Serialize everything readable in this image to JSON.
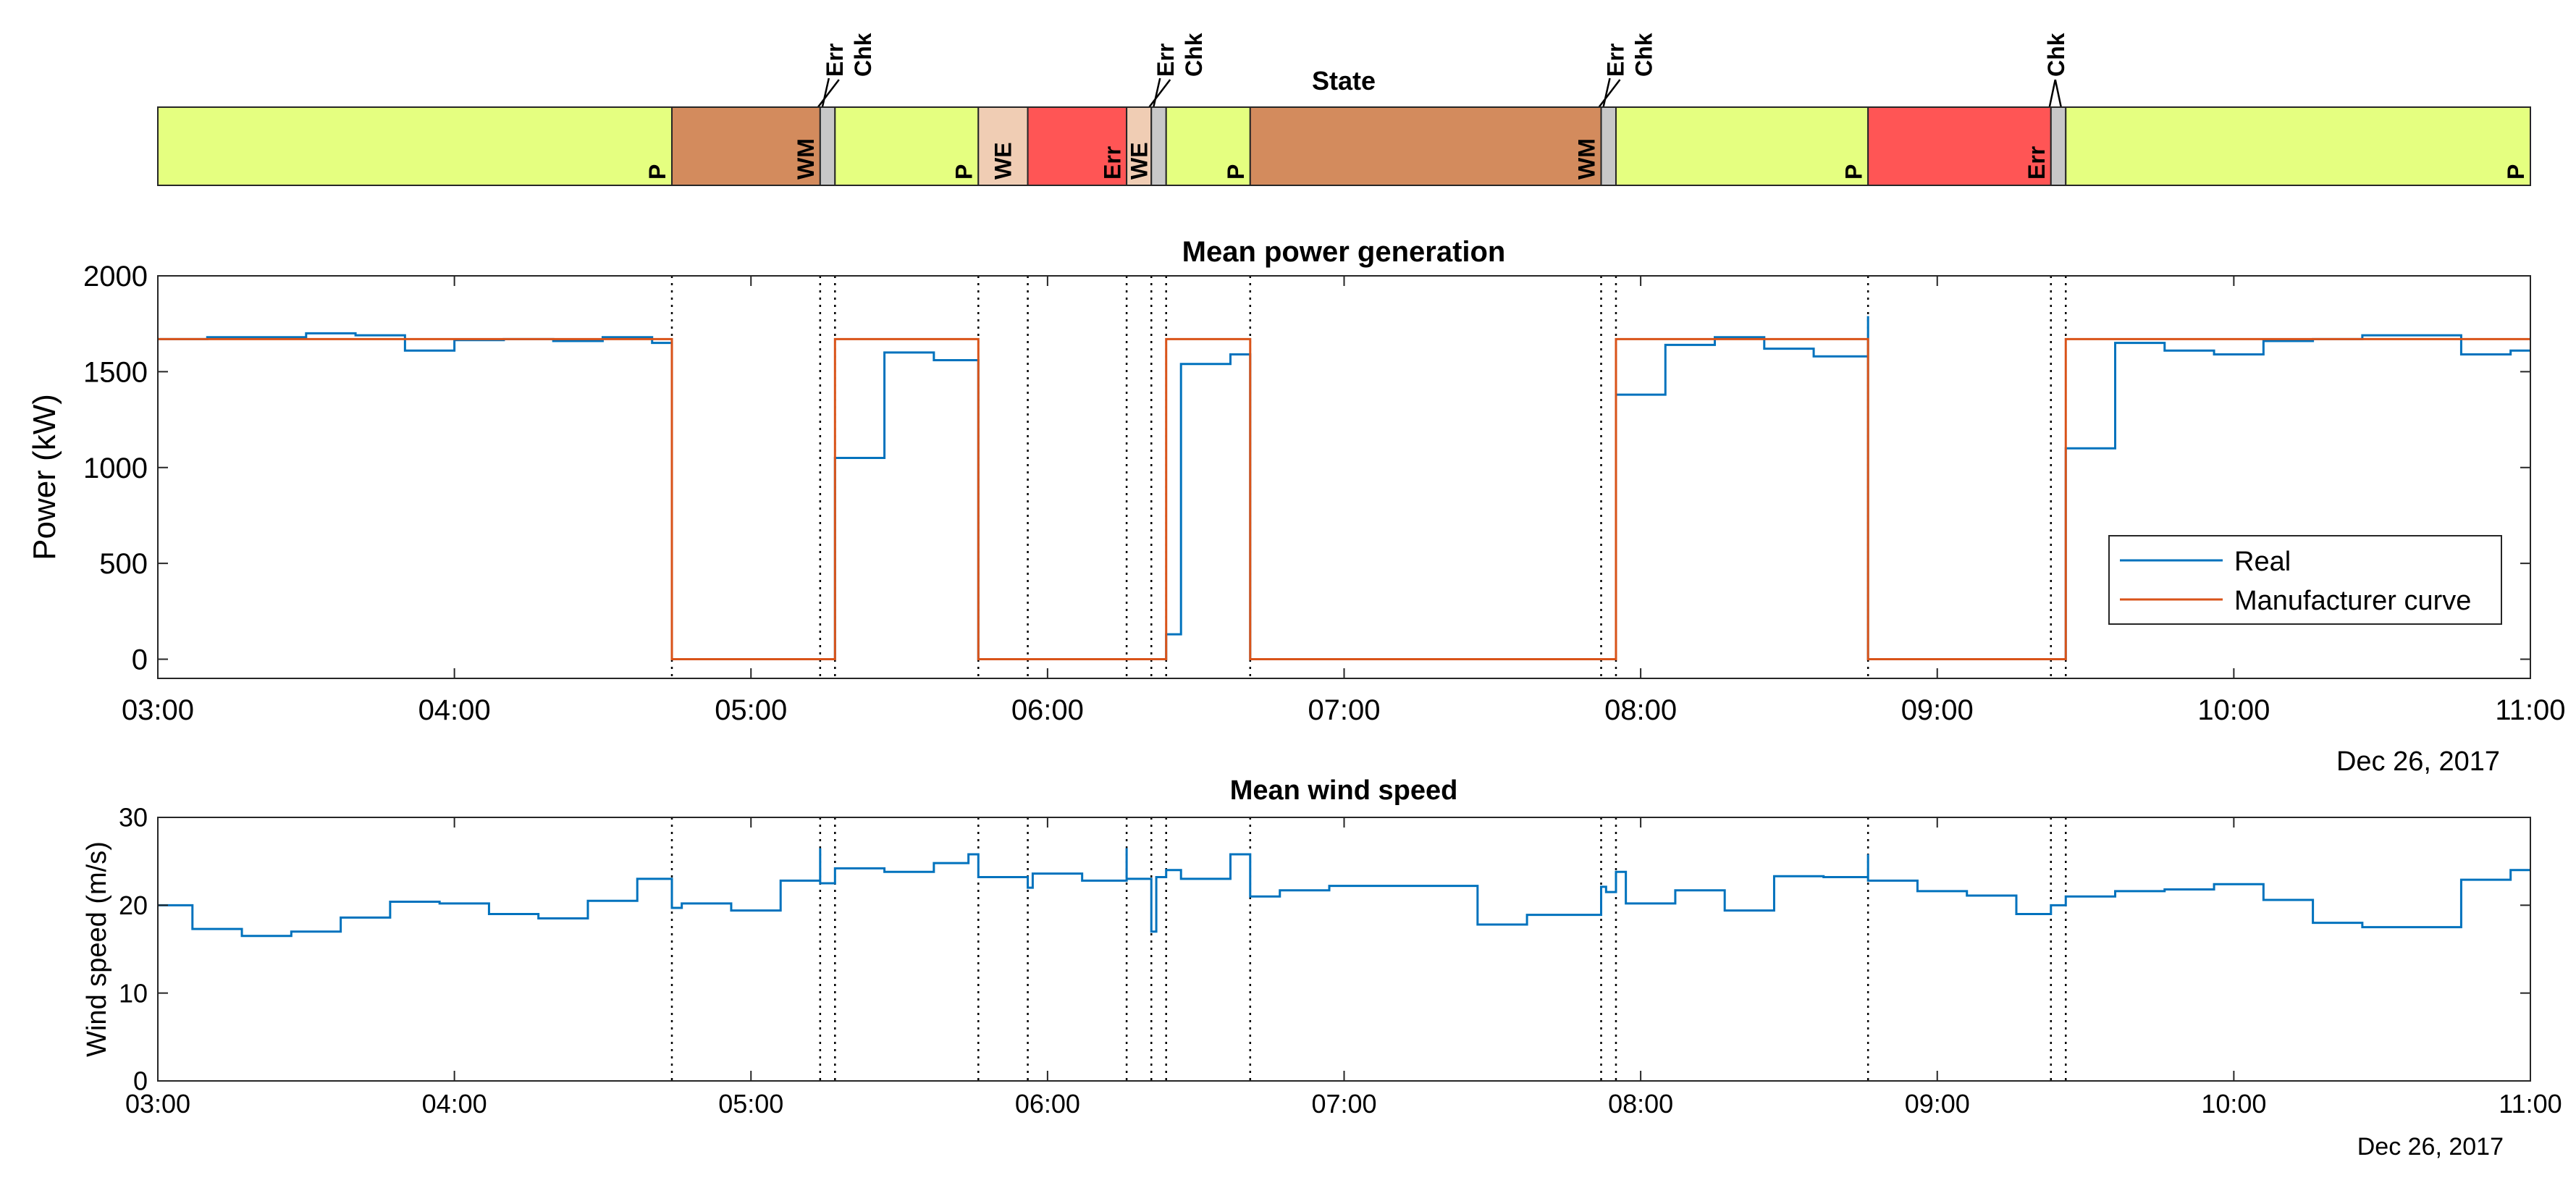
{
  "chart_data": [
    {
      "type": "state-timeline",
      "title": "State",
      "x_range": [
        "03:00",
        "11:00"
      ],
      "segments": [
        {
          "state": "P",
          "label": "P",
          "start": "03:00",
          "end": "04:44",
          "color": "#e5ff80"
        },
        {
          "state": "WM",
          "label": "WM",
          "start": "04:44",
          "end": "05:14",
          "color": "#d38b5d"
        },
        {
          "state": "Chk",
          "label": "",
          "start": "05:14",
          "end": "05:17",
          "color": "#c8c8c8"
        },
        {
          "state": "P",
          "label": "P",
          "start": "05:17",
          "end": "05:46",
          "color": "#e5ff80"
        },
        {
          "state": "WE",
          "label": "WE",
          "start": "05:46",
          "end": "05:56",
          "color": "#f0cdb4"
        },
        {
          "state": "Err",
          "label": "Err",
          "start": "05:56",
          "end": "06:16",
          "color": "#ff5555"
        },
        {
          "state": "WE",
          "label": "WE",
          "start": "06:16",
          "end": "06:21",
          "color": "#f0cdb4"
        },
        {
          "state": "Chk",
          "label": "",
          "start": "06:21",
          "end": "06:24",
          "color": "#c8c8c8"
        },
        {
          "state": "P",
          "label": "P",
          "start": "06:24",
          "end": "06:41",
          "color": "#e5ff80"
        },
        {
          "state": "WM",
          "label": "WM",
          "start": "06:41",
          "end": "07:52",
          "color": "#d38b5d"
        },
        {
          "state": "Chk",
          "label": "",
          "start": "07:52",
          "end": "07:55",
          "color": "#c8c8c8"
        },
        {
          "state": "P",
          "label": "P",
          "start": "07:55",
          "end": "08:46",
          "color": "#e5ff80"
        },
        {
          "state": "Err",
          "label": "Err",
          "start": "08:46",
          "end": "09:23",
          "color": "#ff5555"
        },
        {
          "state": "Chk",
          "label": "",
          "start": "09:23",
          "end": "09:26",
          "color": "#c8c8c8"
        },
        {
          "state": "P",
          "label": "P",
          "start": "09:26",
          "end": "11:00",
          "color": "#e5ff80"
        }
      ],
      "markers": [
        {
          "time": "05:14",
          "labels": [
            "Err",
            "Chk"
          ]
        },
        {
          "time": "06:21",
          "labels": [
            "Err",
            "Chk"
          ]
        },
        {
          "time": "07:52",
          "labels": [
            "Err",
            "Chk"
          ]
        },
        {
          "time": "09:23",
          "labels": [
            "Chk"
          ]
        }
      ]
    },
    {
      "type": "line",
      "title": "Mean power generation",
      "xlabel": "",
      "ylabel": "Power (kW)",
      "date_label": "Dec 26, 2017",
      "xlim": [
        "03:00",
        "11:00"
      ],
      "ylim": [
        -100,
        2000
      ],
      "yticks": [
        0,
        500,
        1000,
        1500,
        2000
      ],
      "xticks": [
        "03:00",
        "04:00",
        "05:00",
        "06:00",
        "07:00",
        "08:00",
        "09:00",
        "10:00",
        "11:00"
      ],
      "vlines": [
        "04:44",
        "05:14",
        "05:17",
        "05:46",
        "05:56",
        "06:16",
        "06:21",
        "06:24",
        "06:41",
        "07:52",
        "07:55",
        "08:46",
        "09:23",
        "09:26"
      ],
      "legend": {
        "position": "lower-right",
        "entries": [
          "Real",
          "Manufacturer curve"
        ]
      },
      "series": [
        {
          "name": "Real",
          "color": "#0072bd",
          "step": true,
          "points": [
            [
              "03:00",
              1670
            ],
            [
              "03:10",
              1680
            ],
            [
              "03:30",
              1700
            ],
            [
              "03:40",
              1690
            ],
            [
              "03:50",
              1610
            ],
            [
              "04:00",
              1665
            ],
            [
              "04:10",
              1670
            ],
            [
              "04:20",
              1660
            ],
            [
              "04:30",
              1680
            ],
            [
              "04:40",
              1650
            ],
            [
              "04:44",
              0
            ],
            [
              "05:17",
              1050
            ],
            [
              "05:27",
              1600
            ],
            [
              "05:37",
              1560
            ],
            [
              "05:46",
              0
            ],
            [
              "06:24",
              130
            ],
            [
              "06:27",
              1540
            ],
            [
              "06:37",
              1590
            ],
            [
              "06:41",
              0
            ],
            [
              "07:55",
              1380
            ],
            [
              "08:05",
              1640
            ],
            [
              "08:15",
              1680
            ],
            [
              "08:25",
              1620
            ],
            [
              "08:35",
              1580
            ],
            [
              "08:46",
              1790
            ],
            [
              "08:46",
              0
            ],
            [
              "09:26",
              1100
            ],
            [
              "09:36",
              1650
            ],
            [
              "09:46",
              1610
            ],
            [
              "09:56",
              1590
            ],
            [
              "10:06",
              1660
            ],
            [
              "10:16",
              1670
            ],
            [
              "10:26",
              1690
            ],
            [
              "10:46",
              1590
            ],
            [
              "10:56",
              1610
            ],
            [
              "11:00",
              1610
            ]
          ]
        },
        {
          "name": "Manufacturer curve",
          "color": "#d95319",
          "step": true,
          "points": [
            [
              "03:00",
              1670
            ],
            [
              "04:44",
              0
            ],
            [
              "05:17",
              1670
            ],
            [
              "05:46",
              0
            ],
            [
              "06:24",
              1670
            ],
            [
              "06:41",
              0
            ],
            [
              "07:55",
              1670
            ],
            [
              "08:46",
              0
            ],
            [
              "09:26",
              1670
            ],
            [
              "11:00",
              1670
            ]
          ]
        }
      ]
    },
    {
      "type": "line",
      "title": "Mean wind speed",
      "xlabel": "",
      "ylabel": "Wind speed (m/s)",
      "date_label": "Dec 26, 2017",
      "xlim": [
        "03:00",
        "11:00"
      ],
      "ylim": [
        0,
        30
      ],
      "yticks": [
        0,
        10,
        20,
        30
      ],
      "xticks": [
        "03:00",
        "04:00",
        "05:00",
        "06:00",
        "07:00",
        "08:00",
        "09:00",
        "10:00",
        "11:00"
      ],
      "vlines": [
        "04:44",
        "05:14",
        "05:17",
        "05:46",
        "05:56",
        "06:16",
        "06:21",
        "06:24",
        "06:41",
        "07:52",
        "07:55",
        "08:46",
        "09:23",
        "09:26"
      ],
      "series": [
        {
          "name": "Real",
          "color": "#0072bd",
          "step": true,
          "points": [
            [
              "03:00",
              20
            ],
            [
              "03:07",
              17.3
            ],
            [
              "03:17",
              16.5
            ],
            [
              "03:27",
              17
            ],
            [
              "03:37",
              18.6
            ],
            [
              "03:47",
              20.4
            ],
            [
              "03:57",
              20.2
            ],
            [
              "04:07",
              19
            ],
            [
              "04:17",
              18.5
            ],
            [
              "04:27",
              20.5
            ],
            [
              "04:37",
              23
            ],
            [
              "04:44",
              19.7
            ],
            [
              "04:46",
              20.2
            ],
            [
              "04:56",
              19.4
            ],
            [
              "05:06",
              22.8
            ],
            [
              "05:14",
              26.5
            ],
            [
              "05:14",
              22.5
            ],
            [
              "05:17",
              24.2
            ],
            [
              "05:27",
              23.8
            ],
            [
              "05:37",
              24.8
            ],
            [
              "05:44",
              25.8
            ],
            [
              "05:46",
              23.2
            ],
            [
              "05:56",
              22
            ],
            [
              "05:57",
              23.6
            ],
            [
              "06:07",
              22.8
            ],
            [
              "06:16",
              26.5
            ],
            [
              "06:16",
              23
            ],
            [
              "06:21",
              17
            ],
            [
              "06:22",
              23.2
            ],
            [
              "06:24",
              24
            ],
            [
              "06:27",
              23
            ],
            [
              "06:37",
              25.8
            ],
            [
              "06:41",
              21
            ],
            [
              "06:47",
              21.7
            ],
            [
              "06:57",
              22.2
            ],
            [
              "07:17",
              22.2
            ],
            [
              "07:27",
              17.8
            ],
            [
              "07:37",
              18.9
            ],
            [
              "07:47",
              18.9
            ],
            [
              "07:52",
              22.1
            ],
            [
              "07:53",
              21.5
            ],
            [
              "07:55",
              23.8
            ],
            [
              "07:57",
              20.2
            ],
            [
              "08:07",
              21.7
            ],
            [
              "08:17",
              19.4
            ],
            [
              "08:27",
              23.3
            ],
            [
              "08:37",
              23.2
            ],
            [
              "08:46",
              25.8
            ],
            [
              "08:46",
              22.8
            ],
            [
              "08:56",
              21.6
            ],
            [
              "09:06",
              21.1
            ],
            [
              "09:16",
              19
            ],
            [
              "09:23",
              20
            ],
            [
              "09:26",
              21
            ],
            [
              "09:36",
              21.6
            ],
            [
              "09:46",
              21.8
            ],
            [
              "09:56",
              22.4
            ],
            [
              "10:06",
              20.6
            ],
            [
              "10:16",
              18
            ],
            [
              "10:26",
              17.5
            ],
            [
              "10:46",
              22.9
            ],
            [
              "10:56",
              24
            ],
            [
              "11:00",
              24
            ]
          ]
        }
      ]
    }
  ]
}
